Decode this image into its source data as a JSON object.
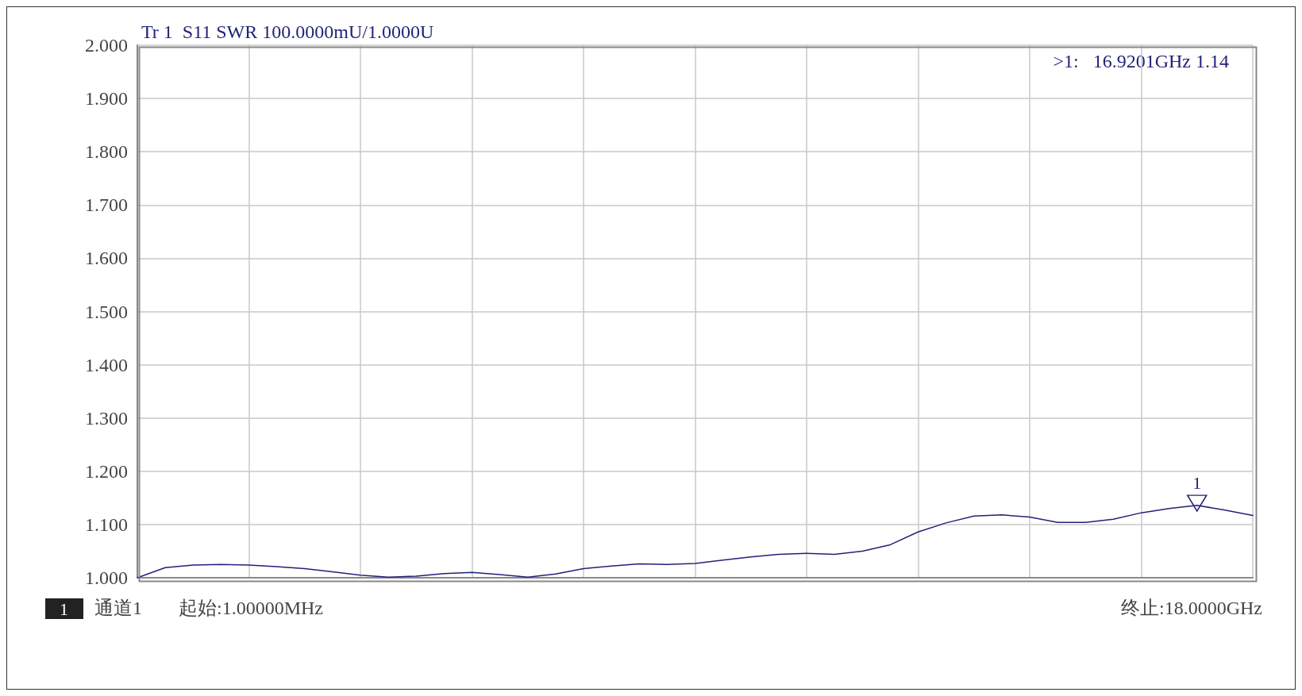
{
  "chart_data": {
    "type": "line",
    "title": "Tr 1  S11 SWR 100.0000mU/1.0000U",
    "categories": [
      null,
      null,
      null,
      null,
      null,
      null,
      null,
      null,
      null,
      null,
      null,
      null,
      null,
      null,
      null,
      null,
      null,
      null,
      null,
      null,
      null,
      null,
      null,
      null,
      null,
      null,
      null,
      null,
      null,
      null,
      null,
      null,
      null,
      null,
      null,
      null,
      null,
      null,
      null,
      null,
      null
    ],
    "series": [
      {
        "color": "#22227a",
        "values": [
          1.0,
          1.019,
          1.024,
          1.025,
          1.024,
          1.021,
          1.017,
          1.011,
          1.005,
          1.001,
          1.003,
          1.008,
          1.01,
          1.006,
          1.001,
          1.007,
          1.017,
          1.022,
          1.026,
          1.025,
          1.027,
          1.033,
          1.039,
          1.044,
          1.046,
          1.044,
          1.05,
          1.062,
          1.086,
          1.103,
          1.116,
          1.118,
          1.114,
          1.104,
          1.104,
          1.11,
          1.122,
          1.13,
          1.136,
          1.127,
          1.117
        ]
      }
    ],
    "ylim": [
      1,
      2
    ],
    "yticks": [
      {
        "value": 1,
        "label": "1.000"
      },
      {
        "value": 1.1,
        "label": "1.100"
      },
      {
        "value": 1.2,
        "label": "1.200"
      },
      {
        "value": 1.3,
        "label": "1.300"
      },
      {
        "value": 1.4,
        "label": "1.400"
      },
      {
        "value": 1.5,
        "label": "1.500"
      },
      {
        "value": 1.6,
        "label": "1.600"
      },
      {
        "value": 1.7,
        "label": "1.700"
      },
      {
        "value": 1.8,
        "label": "1.800"
      },
      {
        "value": 1.9,
        "label": "1.900"
      },
      {
        "value": 2,
        "label": "2.000"
      }
    ],
    "grid": true,
    "marker": "none",
    "line_style": "solid",
    "annotations": [
      ">1:   16.9201GHz 1.14",
      {
        "text": "1",
        "y": 1.14
      },
      "1",
      "通道1",
      "起始:1.00000MHz",
      "终止:18.0000GHz"
    ]
  }
}
